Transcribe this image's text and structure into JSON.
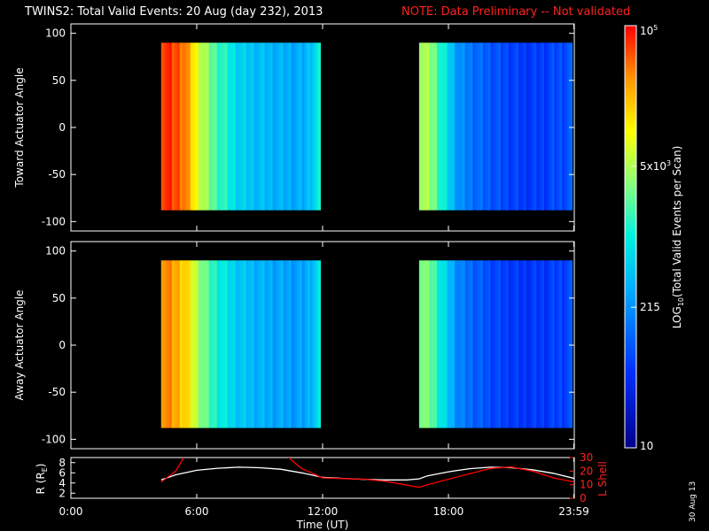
{
  "header": {
    "title": "TWINS2: Total Valid Events: 20 Aug (day 232), 2013",
    "note": "NOTE: Data Preliminary -- Not validated",
    "note_color": "#ff2020"
  },
  "footer": {
    "date_stamp": "30 Aug 13"
  },
  "chart_data": [
    {
      "type": "heatmap",
      "title": "",
      "ylabel": "Toward Actuator Angle",
      "ylim": [
        -110,
        110
      ],
      "yticks": [
        "100",
        "50",
        "0",
        "-50",
        "-100"
      ],
      "xlim_hours": [
        0,
        24
      ],
      "angle_range": [
        -88,
        90
      ],
      "data_blocks_hours": [
        [
          4.3,
          11.9
        ],
        [
          16.6,
          23.9
        ]
      ],
      "colorscale": "rainbow (log)",
      "profile": [
        {
          "t": 4.3,
          "v": 0.97
        },
        {
          "t": 5.3,
          "v": 0.92
        },
        {
          "t": 6.0,
          "v": 0.72
        },
        {
          "t": 6.6,
          "v": 0.6
        },
        {
          "t": 7.3,
          "v": 0.52
        },
        {
          "t": 8.0,
          "v": 0.44
        },
        {
          "t": 9.0,
          "v": 0.4
        },
        {
          "t": 10.0,
          "v": 0.38
        },
        {
          "t": 11.0,
          "v": 0.37
        },
        {
          "t": 11.5,
          "v": 0.45
        },
        {
          "t": 11.9,
          "v": 0.5
        },
        {
          "t": 16.6,
          "v": 0.68
        },
        {
          "t": 17.2,
          "v": 0.62
        },
        {
          "t": 17.8,
          "v": 0.48
        },
        {
          "t": 18.5,
          "v": 0.32
        },
        {
          "t": 19.5,
          "v": 0.26
        },
        {
          "t": 20.5,
          "v": 0.22
        },
        {
          "t": 21.5,
          "v": 0.19
        },
        {
          "t": 22.5,
          "v": 0.2
        },
        {
          "t": 23.9,
          "v": 0.24
        }
      ]
    },
    {
      "type": "heatmap",
      "title": "",
      "ylabel": "Away Actuator Angle",
      "ylim": [
        -110,
        110
      ],
      "yticks": [
        "100",
        "50",
        "0",
        "-50",
        "-100"
      ],
      "xlim_hours": [
        0,
        24
      ],
      "angle_range": [
        -88,
        90
      ],
      "data_blocks_hours": [
        [
          4.3,
          11.9
        ],
        [
          16.6,
          23.9
        ]
      ],
      "colorscale": "rainbow (log)",
      "profile": [
        {
          "t": 4.3,
          "v": 0.9
        },
        {
          "t": 5.3,
          "v": 0.82
        },
        {
          "t": 6.0,
          "v": 0.66
        },
        {
          "t": 6.6,
          "v": 0.55
        },
        {
          "t": 7.3,
          "v": 0.48
        },
        {
          "t": 8.0,
          "v": 0.42
        },
        {
          "t": 9.0,
          "v": 0.38
        },
        {
          "t": 10.0,
          "v": 0.36
        },
        {
          "t": 11.0,
          "v": 0.35
        },
        {
          "t": 11.5,
          "v": 0.42
        },
        {
          "t": 11.9,
          "v": 0.48
        },
        {
          "t": 16.6,
          "v": 0.64
        },
        {
          "t": 17.2,
          "v": 0.58
        },
        {
          "t": 17.8,
          "v": 0.44
        },
        {
          "t": 18.5,
          "v": 0.3
        },
        {
          "t": 19.5,
          "v": 0.24
        },
        {
          "t": 20.5,
          "v": 0.2
        },
        {
          "t": 21.5,
          "v": 0.18
        },
        {
          "t": 22.5,
          "v": 0.19
        },
        {
          "t": 23.9,
          "v": 0.22
        }
      ]
    },
    {
      "type": "line",
      "title": "",
      "xlabel": "Time (UT)",
      "ylabel": "R (R",
      "ylabel_sub": "E",
      "ylabel_close": ")",
      "ylabel2": "L Shell",
      "xlim_hours": [
        0,
        24
      ],
      "xticks": [
        {
          "h": 0,
          "label": "0:00"
        },
        {
          "h": 6,
          "label": "6:00"
        },
        {
          "h": 12,
          "label": "12:00"
        },
        {
          "h": 18,
          "label": "18:00"
        },
        {
          "h": 23.98,
          "label": "23:59"
        }
      ],
      "ylim": [
        1,
        9
      ],
      "yticks": [
        "8",
        "6",
        "4",
        "2"
      ],
      "y2lim": [
        0,
        30
      ],
      "y2ticks": [
        "30",
        "20",
        "10",
        "0"
      ],
      "series": [
        {
          "axis": "left",
          "color": "#ffffff",
          "x": [
            4.3,
            5,
            6,
            7,
            8,
            9,
            10,
            11,
            12,
            13,
            14,
            15,
            16,
            16.6,
            17,
            18,
            19,
            20,
            21,
            22,
            23,
            24
          ],
          "y": [
            4.6,
            5.6,
            6.5,
            6.9,
            7.1,
            7.0,
            6.7,
            6.0,
            5.1,
            4.9,
            4.7,
            4.6,
            4.6,
            4.8,
            5.4,
            6.2,
            6.8,
            7.1,
            7.0,
            6.6,
            5.9,
            4.9
          ]
        },
        {
          "axis": "right",
          "color": "#ff0000",
          "x": [
            4.3,
            5,
            5.5,
            10.2,
            10.6,
            11,
            12,
            13,
            14,
            15,
            16.6,
            17,
            18,
            19,
            20,
            21,
            22,
            23,
            24
          ],
          "y": [
            12,
            20,
            33,
            33,
            27,
            22,
            15,
            14.5,
            14,
            12.5,
            8,
            10,
            14,
            18,
            22,
            23,
            20,
            15,
            12
          ]
        }
      ]
    },
    {
      "type": "colorbar",
      "label": "LOG",
      "label_sub": "10",
      "label_rest": "(Total Valid Events per Scan)",
      "ticks": [
        {
          "label": "10",
          "label_sup": "",
          "frac": 0.0
        },
        {
          "label": "215",
          "label_sup": "",
          "frac": 0.333
        },
        {
          "label": "5x10",
          "label_sup": "3",
          "frac": 0.667
        },
        {
          "label": "10",
          "label_sup": "5",
          "frac": 1.0
        }
      ]
    }
  ]
}
